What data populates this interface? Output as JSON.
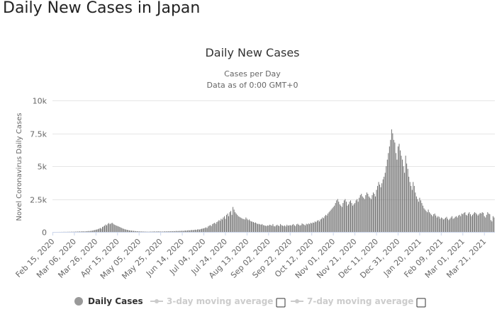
{
  "page": {
    "heading": "Daily New Cases in Japan"
  },
  "chart_data": {
    "type": "bar",
    "title": "Daily New Cases",
    "subtitle_line1": "Cases per Day",
    "subtitle_line2": "Data as of 0:00 GMT+0",
    "ylabel": "Novel Coronavirus Daily Cases",
    "xlabel": "",
    "ylim": [
      0,
      10000
    ],
    "yticks": [
      0,
      2500,
      5000,
      7500,
      10000
    ],
    "ytick_labels": [
      "0",
      "2.5k",
      "5k",
      "7.5k",
      "10k"
    ],
    "xtick_labels": [
      "Feb 15, 2020",
      "Mar 06, 2020",
      "Mar 26, 2020",
      "Apr 15, 2020",
      "May 05, 2020",
      "May 25, 2020",
      "Jun 14, 2020",
      "Jul 04, 2020",
      "Jul 24, 2020",
      "Aug 13, 2020",
      "Sep 02, 2020",
      "Sep 22, 2020",
      "Oct 12, 2020",
      "Nov 01, 2020",
      "Nov 21, 2020",
      "Dec 11, 2020",
      "Dec 31, 2020",
      "Jan 20, 2021",
      "Feb 09, 2021",
      "Mar 01, 2021",
      "Mar 21, 2021"
    ],
    "grid": true,
    "bar_color": "#666666",
    "legend": {
      "position": "bottom",
      "items": [
        {
          "label": "Daily Cases",
          "active": true,
          "color": "#999999"
        },
        {
          "label": "3-day moving average",
          "active": false,
          "color": "#cccccc"
        },
        {
          "label": "7-day moving average",
          "active": false,
          "color": "#cccccc"
        }
      ]
    },
    "series": [
      {
        "name": "Daily Cases",
        "x_start": "Feb 15, 2020",
        "values_by_20_day_period": [
          [
            0,
            0,
            1,
            0,
            2,
            1,
            3,
            2,
            5,
            4,
            8,
            10,
            6,
            9,
            12,
            15,
            11,
            18,
            20,
            14
          ],
          [
            25,
            22,
            30,
            28,
            35,
            40,
            33,
            45,
            50,
            42,
            38,
            55,
            60,
            70,
            65,
            80,
            90,
            110,
            130,
            150
          ],
          [
            170,
            190,
            210,
            260,
            300,
            250,
            380,
            420,
            480,
            560,
            500,
            620,
            680,
            590,
            650,
            700,
            620,
            560,
            520,
            480
          ],
          [
            450,
            420,
            380,
            340,
            300,
            260,
            230,
            200,
            180,
            160,
            140,
            120,
            110,
            100,
            90,
            80,
            70,
            60,
            55,
            50
          ],
          [
            45,
            40,
            38,
            35,
            30,
            28,
            25,
            22,
            20,
            18,
            25,
            30,
            22,
            35,
            40,
            28,
            33,
            45,
            38,
            42
          ],
          [
            30,
            35,
            28,
            40,
            45,
            38,
            50,
            42,
            55,
            48,
            60,
            52,
            65,
            58,
            70,
            75,
            62,
            80,
            72,
            85
          ],
          [
            90,
            78,
            100,
            110,
            95,
            120,
            130,
            115,
            140,
            150,
            135,
            160,
            175,
            150,
            190,
            200,
            180,
            220,
            240,
            260
          ],
          [
            280,
            310,
            350,
            300,
            420,
            480,
            520,
            450,
            600,
            650,
            700,
            620,
            750,
            800,
            900,
            850,
            1000,
            950,
            1100,
            1200
          ],
          [
            1000,
            1300,
            1400,
            1200,
            1500,
            1600,
            1300,
            1900,
            1700,
            1500,
            1400,
            1300,
            1200,
            1150,
            1100,
            1050,
            1000,
            980,
            950,
            1100
          ],
          [
            1000,
            900,
            950,
            850,
            800,
            780,
            750,
            700,
            720,
            650,
            600,
            620,
            580,
            550,
            600,
            520,
            500,
            480,
            450,
            500
          ],
          [
            480,
            550,
            520,
            480,
            600,
            450,
            420,
            500,
            550,
            480,
            450,
            600,
            520,
            480,
            450,
            500,
            420,
            550,
            480,
            500
          ],
          [
            520,
            480,
            550,
            600,
            500,
            450,
            580,
            620,
            550,
            480,
            520,
            650,
            600,
            550,
            500,
            620,
            580,
            650,
            600,
            700
          ],
          [
            650,
            720,
            700,
            800,
            750,
            850,
            900,
            800,
            950,
            1000,
            1100,
            1050,
            1200,
            1300,
            1250,
            1400,
            1500,
            1600,
            1700,
            1800
          ],
          [
            1900,
            2000,
            2200,
            2400,
            2500,
            2300,
            2100,
            2000,
            1900,
            2200,
            2400,
            2500,
            2300,
            2000,
            2100,
            2300,
            2400,
            2200,
            2000,
            2100
          ],
          [
            2200,
            2400,
            2500,
            2300,
            2600,
            2800,
            2900,
            2700,
            2600,
            2500,
            2800,
            3000,
            2900,
            2700,
            2600,
            2500,
            2800,
            3000,
            2900,
            2700
          ],
          [
            3200,
            3500,
            3800,
            3600,
            3400,
            3700,
            4000,
            4200,
            4500,
            5000,
            5500,
            6000,
            6500,
            7000,
            7800,
            7500,
            7000,
            6800,
            6000,
            5500
          ],
          [
            6500,
            6700,
            6200,
            5800,
            5500,
            5000,
            4500,
            5800,
            5200,
            4800,
            4200,
            3800,
            3500,
            3200,
            3800,
            3500,
            3000,
            2700,
            2500,
            2300
          ],
          [
            2600,
            2400,
            2200,
            2000,
            1800,
            1700,
            1600,
            1500,
            1700,
            1500,
            1400,
            1300,
            1200,
            1350,
            1400,
            1250,
            1100,
            1200,
            1150,
            1000
          ],
          [
            1100,
            1050,
            950,
            1000,
            1080,
            1150,
            1000,
            900,
            1000,
            1100,
            1200,
            1000,
            1050,
            1150,
            1200,
            1100,
            1250,
            1300,
            1200,
            1400
          ],
          [
            1350,
            1450,
            1500,
            1300,
            1250,
            1400,
            1500,
            1350,
            1200,
            1300,
            1400,
            1500,
            1450,
            1350,
            1250,
            1350,
            1450,
            1400,
            1500,
            1450
          ],
          [
            1200,
            1100,
            1300,
            1500,
            1400,
            1350,
            900,
            800,
            1200,
            1100
          ]
        ]
      }
    ]
  }
}
